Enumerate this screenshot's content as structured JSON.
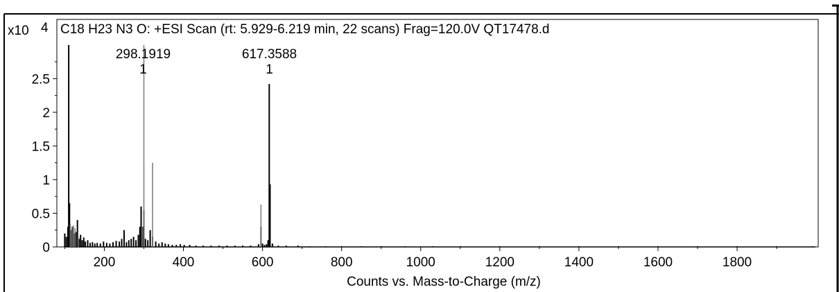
{
  "chart_data": {
    "type": "bar",
    "title": "C18 H23 N3 O: +ESI Scan (rt: 5.929-6.219 min, 22 scans) Frag=120.0V QT17478.d",
    "xlabel": "Counts vs. Mass-to-Charge (m/z)",
    "ylabel": "",
    "y_multiplier": "x10",
    "y_exponent": "4",
    "xlim": [
      80,
      2005
    ],
    "ylim": [
      0,
      3.05
    ],
    "x_ticks": [
      "200",
      "400",
      "600",
      "800",
      "1000",
      "1200",
      "1400",
      "1600",
      "1800"
    ],
    "y_ticks": [
      "0",
      "0.5",
      "1",
      "1.5",
      "2",
      "2.5"
    ],
    "grid": false,
    "peak_annotations": [
      {
        "mz": 298.1919,
        "label": "298.1919",
        "charge": "1"
      },
      {
        "mz": 617.3588,
        "label": "617.3588",
        "charge": "1"
      }
    ],
    "series": [
      {
        "color": "#000000",
        "x": [
          100,
          104,
          108,
          110,
          112,
          116,
          120,
          124,
          128,
          132,
          136,
          140,
          144,
          148,
          152,
          158,
          164,
          170,
          176,
          182,
          190,
          198,
          206,
          214,
          222,
          230,
          238,
          244,
          250,
          256,
          262,
          268,
          274,
          280,
          286,
          290,
          293,
          298,
          300,
          304,
          310,
          316,
          322,
          330,
          338,
          346,
          354,
          362,
          372,
          382,
          392,
          402,
          416,
          432,
          450,
          470,
          490,
          510,
          530,
          550,
          570,
          590,
          596,
          600,
          605,
          610,
          614,
          617,
          619,
          625,
          640,
          660,
          690,
          720,
          760,
          800,
          850,
          900,
          960,
          1030,
          1100,
          1200,
          1300,
          1400,
          1500,
          1600,
          1700,
          1800,
          1900,
          1990
        ],
        "y": [
          0.2,
          0.15,
          0.3,
          3.0,
          0.65,
          0.25,
          0.3,
          0.2,
          0.22,
          0.4,
          0.12,
          0.18,
          0.1,
          0.14,
          0.08,
          0.1,
          0.06,
          0.07,
          0.05,
          0.06,
          0.05,
          0.08,
          0.06,
          0.05,
          0.07,
          0.09,
          0.08,
          0.12,
          0.25,
          0.07,
          0.1,
          0.12,
          0.15,
          0.1,
          0.18,
          0.3,
          0.6,
          0.3,
          0.55,
          0.12,
          0.1,
          0.25,
          0.15,
          0.08,
          0.05,
          0.07,
          0.05,
          0.04,
          0.03,
          0.03,
          0.04,
          0.03,
          0.03,
          0.02,
          0.02,
          0.02,
          0.02,
          0.02,
          0.02,
          0.02,
          0.02,
          0.04,
          0.3,
          0.05,
          0.03,
          0.04,
          0.1,
          2.42,
          0.93,
          0.05,
          0.02,
          0.02,
          0.02,
          0.01,
          0.01,
          0.01,
          0.01,
          0.01,
          0.01,
          0.01,
          0.01,
          0.01,
          0.01,
          0.01,
          0.01,
          0.01,
          0.01,
          0.01,
          0.01,
          0.01
        ]
      },
      {
        "color": "#808080",
        "x": [
          114,
          118,
          122,
          126,
          134,
          300,
          322,
          596
        ],
        "y": [
          0.35,
          0.3,
          0.32,
          0.28,
          0.15,
          3.0,
          1.25,
          0.63
        ]
      }
    ]
  }
}
